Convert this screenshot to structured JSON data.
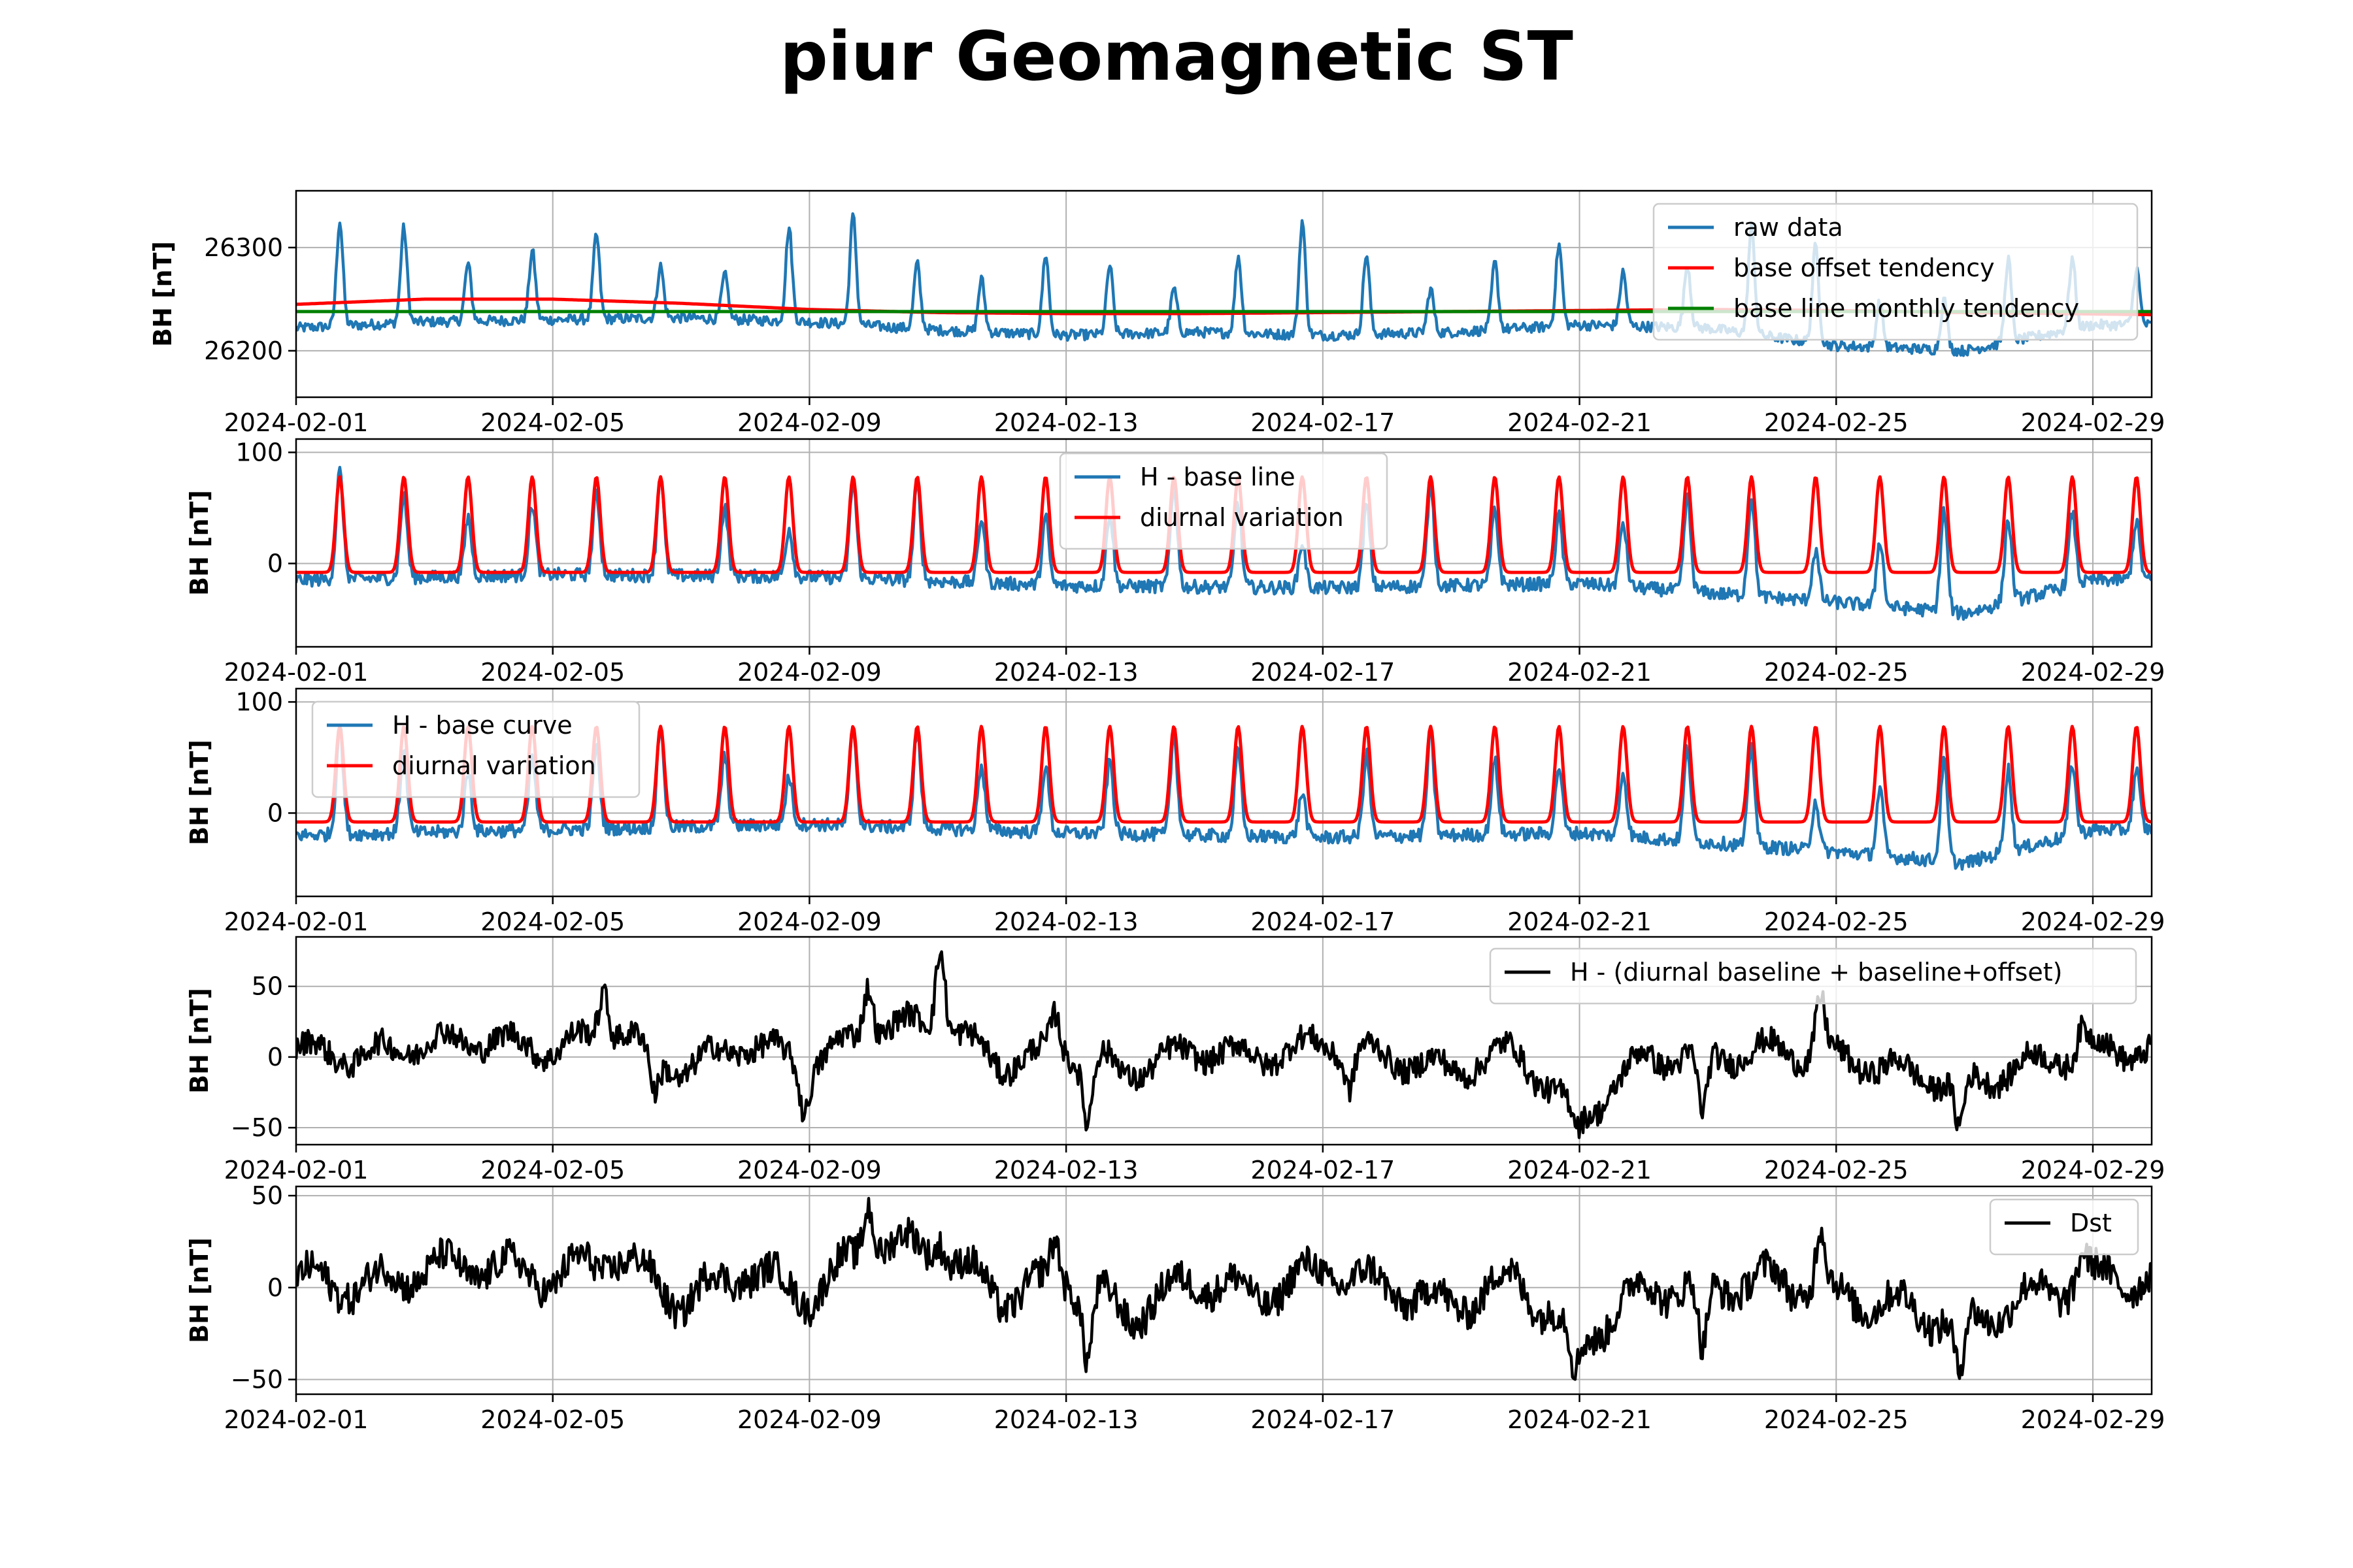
{
  "figure": {
    "title": "piur Geomagnetic ST"
  },
  "colors": {
    "raw": "#1f77b4",
    "red": "#ff0000",
    "green": "#008000",
    "black": "#000000",
    "grid": "#b0b0b0"
  },
  "chart_data": [
    {
      "type": "line",
      "ylabel": "BH [nT]",
      "xlim": [
        "2024-02-01",
        "2024-02-29T22:00"
      ],
      "ylim": [
        26155,
        26355
      ],
      "yticks": [
        26200,
        26300
      ],
      "xticks": [
        "2024-02-01",
        "2024-02-05",
        "2024-02-09",
        "2024-02-13",
        "2024-02-17",
        "2024-02-21",
        "2024-02-25",
        "2024-02-29"
      ],
      "grid": true,
      "legend": "top-right",
      "series": [
        {
          "name": "raw data",
          "color": "#1f77b4",
          "kind": "raw_h",
          "x": [
            "2024-02-01",
            "2024-02-03",
            "2024-02-05",
            "2024-02-07",
            "2024-02-09",
            "2024-02-11",
            "2024-02-13",
            "2024-02-15",
            "2024-02-17",
            "2024-02-19",
            "2024-02-21",
            "2024-02-23",
            "2024-02-25",
            "2024-02-27",
            "2024-02-29"
          ],
          "y": [
            26222,
            26228,
            26230,
            26232,
            26228,
            26220,
            26215,
            26218,
            26215,
            26218,
            26225,
            26222,
            26205,
            26200,
            26225
          ]
        },
        {
          "name": "base offset tendency",
          "color": "#ff0000",
          "kind": "offset",
          "x": [
            "2024-02-01",
            "2024-02-03",
            "2024-02-05",
            "2024-02-07",
            "2024-02-09",
            "2024-02-11",
            "2024-02-13",
            "2024-02-15",
            "2024-02-17",
            "2024-02-19",
            "2024-02-21",
            "2024-02-23",
            "2024-02-25",
            "2024-02-27",
            "2024-02-29T22:00"
          ],
          "y": [
            26245,
            26250,
            26250,
            26246,
            26240,
            26237,
            26236,
            26236,
            26237,
            26238,
            26239,
            26240,
            26239,
            26237,
            26235
          ]
        },
        {
          "name": "base line monthly tendency",
          "color": "#008000",
          "kind": "baseline",
          "x": [
            "2024-02-01",
            "2024-02-15",
            "2024-02-29T22:00"
          ],
          "y": [
            26238,
            26238,
            26238
          ]
        }
      ]
    },
    {
      "type": "line",
      "ylabel": "BH [nT]",
      "xlim": [
        "2024-02-01",
        "2024-02-29T22:00"
      ],
      "ylim": [
        -75,
        112
      ],
      "yticks": [
        0,
        100
      ],
      "xticks": [
        "2024-02-01",
        "2024-02-05",
        "2024-02-09",
        "2024-02-13",
        "2024-02-17",
        "2024-02-21",
        "2024-02-25",
        "2024-02-29"
      ],
      "grid": true,
      "legend": "top-center",
      "series": [
        {
          "name": "H - base line",
          "color": "#1f77b4",
          "kind": "h_minus_base",
          "x": [
            "2024-02-01",
            "2024-02-05",
            "2024-02-09",
            "2024-02-13",
            "2024-02-17",
            "2024-02-21",
            "2024-02-25",
            "2024-02-27",
            "2024-02-29"
          ],
          "y": [
            -15,
            -10,
            -12,
            -20,
            -22,
            -18,
            -35,
            -45,
            -15
          ]
        },
        {
          "name": "diurnal variation",
          "color": "#ff0000",
          "kind": "diurnal",
          "x": [
            "2024-02-01",
            "2024-02-29"
          ],
          "y": [
            -8,
            78
          ]
        }
      ]
    },
    {
      "type": "line",
      "ylabel": "BH [nT]",
      "xlim": [
        "2024-02-01",
        "2024-02-29T22:00"
      ],
      "ylim": [
        -75,
        112
      ],
      "yticks": [
        0,
        100
      ],
      "xticks": [
        "2024-02-01",
        "2024-02-05",
        "2024-02-09",
        "2024-02-13",
        "2024-02-17",
        "2024-02-21",
        "2024-02-25",
        "2024-02-29"
      ],
      "grid": true,
      "legend": "top-left",
      "series": [
        {
          "name": "H - base curve",
          "color": "#1f77b4",
          "kind": "h_minus_base",
          "x": [
            "2024-02-01",
            "2024-02-05",
            "2024-02-09",
            "2024-02-13",
            "2024-02-17",
            "2024-02-21",
            "2024-02-25",
            "2024-02-27",
            "2024-02-29"
          ],
          "y": [
            -20,
            -15,
            -10,
            -18,
            -22,
            -18,
            -35,
            -45,
            -15
          ]
        },
        {
          "name": "diurnal variation",
          "color": "#ff0000",
          "kind": "diurnal",
          "x": [
            "2024-02-01",
            "2024-02-29"
          ],
          "y": [
            -8,
            78
          ]
        }
      ]
    },
    {
      "type": "line",
      "ylabel": "BH [nT]",
      "xlim": [
        "2024-02-01",
        "2024-02-29T22:00"
      ],
      "ylim": [
        -62,
        85
      ],
      "yticks": [
        -50,
        0,
        50
      ],
      "ytick_labels": [
        "−50",
        "0",
        "50"
      ],
      "xticks": [
        "2024-02-01",
        "2024-02-05",
        "2024-02-09",
        "2024-02-13",
        "2024-02-17",
        "2024-02-21",
        "2024-02-25",
        "2024-02-29"
      ],
      "grid": true,
      "legend": "top-right",
      "series": [
        {
          "name": "H - (diurnal baseline + baseline+offset)",
          "color": "#000000",
          "kind": "residual",
          "x": [
            "2024-02-01",
            "2024-02-02",
            "2024-02-03",
            "2024-02-04",
            "2024-02-05",
            "2024-02-06",
            "2024-02-07",
            "2024-02-08",
            "2024-02-09",
            "2024-02-10",
            "2024-02-11",
            "2024-02-12",
            "2024-02-13",
            "2024-02-14",
            "2024-02-15",
            "2024-02-16",
            "2024-02-17",
            "2024-02-18",
            "2024-02-19",
            "2024-02-20",
            "2024-02-21",
            "2024-02-22",
            "2024-02-23",
            "2024-02-24",
            "2024-02-25",
            "2024-02-26",
            "2024-02-27",
            "2024-02-28",
            "2024-02-29",
            "2024-02-29T22:00"
          ],
          "y": [
            5,
            0,
            10,
            12,
            5,
            20,
            -10,
            10,
            -5,
            20,
            25,
            -5,
            5,
            -10,
            5,
            0,
            10,
            0,
            -10,
            5,
            -45,
            0,
            0,
            5,
            0,
            -10,
            -20,
            -5,
            5,
            5
          ]
        }
      ],
      "spikes": [
        {
          "x": "2024-02-05T19:00",
          "y": 52
        },
        {
          "x": "2024-02-06T14:00",
          "y": -28
        },
        {
          "x": "2024-02-08T22:00",
          "y": -33
        },
        {
          "x": "2024-02-09T22:00",
          "y": 55
        },
        {
          "x": "2024-02-11T01:00",
          "y": 82
        },
        {
          "x": "2024-02-12T20:00",
          "y": 30
        },
        {
          "x": "2024-02-13T08:00",
          "y": -45
        },
        {
          "x": "2024-02-17T10:00",
          "y": -20
        },
        {
          "x": "2024-02-20T23:00",
          "y": -52
        },
        {
          "x": "2024-02-22T22:00",
          "y": -45
        },
        {
          "x": "2024-02-24T18:00",
          "y": 40
        },
        {
          "x": "2024-02-26T22:00",
          "y": -55
        },
        {
          "x": "2024-02-28T20:00",
          "y": 20
        }
      ]
    },
    {
      "type": "line",
      "ylabel": "BH [nT]",
      "xlim": [
        "2024-02-01",
        "2024-02-29T22:00"
      ],
      "ylim": [
        -58,
        55
      ],
      "yticks": [
        -50,
        0,
        50
      ],
      "ytick_labels": [
        "−50",
        "0",
        "50"
      ],
      "xticks": [
        "2024-02-01",
        "2024-02-05",
        "2024-02-09",
        "2024-02-13",
        "2024-02-17",
        "2024-02-21",
        "2024-02-25",
        "2024-02-29"
      ],
      "grid": true,
      "legend": "top-right",
      "series": [
        {
          "name": "Dst",
          "color": "#000000",
          "kind": "dst",
          "x": [
            "2024-02-01",
            "2024-02-02",
            "2024-02-03",
            "2024-02-04",
            "2024-02-05",
            "2024-02-06",
            "2024-02-07",
            "2024-02-08",
            "2024-02-09",
            "2024-02-10",
            "2024-02-11",
            "2024-02-12",
            "2024-02-13",
            "2024-02-14",
            "2024-02-15",
            "2024-02-16",
            "2024-02-17",
            "2024-02-18",
            "2024-02-19",
            "2024-02-20",
            "2024-02-21",
            "2024-02-22",
            "2024-02-23",
            "2024-02-24",
            "2024-02-25",
            "2024-02-26",
            "2024-02-27",
            "2024-02-28",
            "2024-02-29",
            "2024-02-29T22:00"
          ],
          "y": [
            5,
            0,
            10,
            12,
            5,
            18,
            -8,
            10,
            -5,
            25,
            20,
            -5,
            5,
            -15,
            5,
            -5,
            10,
            0,
            -10,
            5,
            -30,
            0,
            0,
            5,
            -5,
            -10,
            -20,
            -5,
            5,
            5
          ]
        }
      ],
      "spikes": [
        {
          "x": "2024-02-09T22:00",
          "y": 50
        },
        {
          "x": "2024-02-11T01:00",
          "y": 30
        },
        {
          "x": "2024-02-12T20:00",
          "y": 25
        },
        {
          "x": "2024-02-13T08:00",
          "y": -38
        },
        {
          "x": "2024-02-20T22:00",
          "y": -50
        },
        {
          "x": "2024-02-22T22:00",
          "y": -40
        },
        {
          "x": "2024-02-24T18:00",
          "y": 30
        },
        {
          "x": "2024-02-26T22:00",
          "y": -52
        },
        {
          "x": "2024-02-28T20:00",
          "y": 18
        }
      ]
    }
  ]
}
